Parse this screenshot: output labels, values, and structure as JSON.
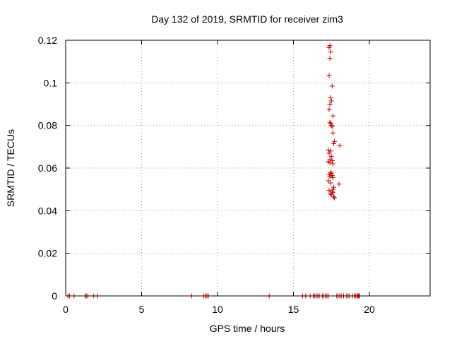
{
  "chart_data": {
    "type": "scatter",
    "title": "Day 132 of 2019, SRMTID for receiver zim3",
    "xlabel": "GPS time / hours",
    "ylabel": "SRMTID / TECUs",
    "xlim": [
      0,
      24
    ],
    "ylim": [
      0,
      0.12
    ],
    "xticks": [
      0,
      5,
      10,
      15,
      20
    ],
    "xtick_labels": [
      "0",
      "5",
      "10",
      "15",
      "20"
    ],
    "yticks": [
      0,
      0.02,
      0.04,
      0.06,
      0.08,
      0.1,
      0.12
    ],
    "ytick_labels": [
      "0",
      "0.02",
      "0.04",
      "0.06",
      "0.08",
      "0.1",
      "0.12"
    ],
    "grid": true,
    "marker": "+",
    "color": "#cc0000",
    "series": [
      {
        "name": "SRMTID",
        "x": [
          0.15,
          0.25,
          0.55,
          1.3,
          1.35,
          1.45,
          1.85,
          2.1,
          8.3,
          9.1,
          9.2,
          9.3,
          9.4,
          13.4,
          15.6,
          15.8,
          16.1,
          16.3,
          16.4,
          16.5,
          16.6,
          16.7,
          16.9,
          17.0,
          17.1,
          17.2,
          17.3,
          17.85,
          17.95,
          18.05,
          18.15,
          18.3,
          18.5,
          18.6,
          18.7,
          18.9,
          19.0,
          19.1,
          19.2,
          19.25,
          19.3,
          19.35,
          17.4,
          17.35,
          17.45,
          17.4,
          17.35,
          17.55,
          17.45,
          17.5,
          17.4,
          17.35,
          17.6,
          17.4,
          17.45,
          17.5,
          17.55,
          17.6,
          17.7,
          17.65,
          18.05,
          17.3,
          17.45,
          17.35,
          17.5,
          17.4,
          17.55,
          17.3,
          17.4,
          17.6,
          17.45,
          17.5,
          17.35,
          17.55,
          17.4,
          17.6,
          17.3,
          17.45,
          17.65,
          18.0,
          17.35,
          17.55,
          17.6,
          17.45,
          17.5,
          17.65,
          17.7,
          17.6
        ],
        "y": [
          0,
          0,
          0,
          0,
          0,
          0,
          0,
          0,
          0,
          0,
          0,
          0,
          0,
          0,
          0,
          0,
          0,
          0,
          0,
          0,
          0,
          0,
          0,
          0,
          0,
          0,
          0,
          0,
          0,
          0,
          0,
          0,
          0,
          0,
          0,
          0,
          0,
          0,
          0,
          0,
          0,
          0,
          0.1175,
          0.1165,
          0.1145,
          0.1115,
          0.1035,
          0.0985,
          0.093,
          0.0915,
          0.09,
          0.0875,
          0.0845,
          0.0815,
          0.081,
          0.08,
          0.0795,
          0.0765,
          0.0725,
          0.0715,
          0.0705,
          0.0685,
          0.068,
          0.067,
          0.0655,
          0.064,
          0.0635,
          0.063,
          0.0625,
          0.062,
          0.058,
          0.0575,
          0.057,
          0.0565,
          0.056,
          0.0555,
          0.054,
          0.053,
          0.051,
          0.0525,
          0.0495,
          0.049,
          0.0485,
          0.048,
          0.0475,
          0.0465,
          0.046,
          0.05
        ]
      }
    ]
  }
}
